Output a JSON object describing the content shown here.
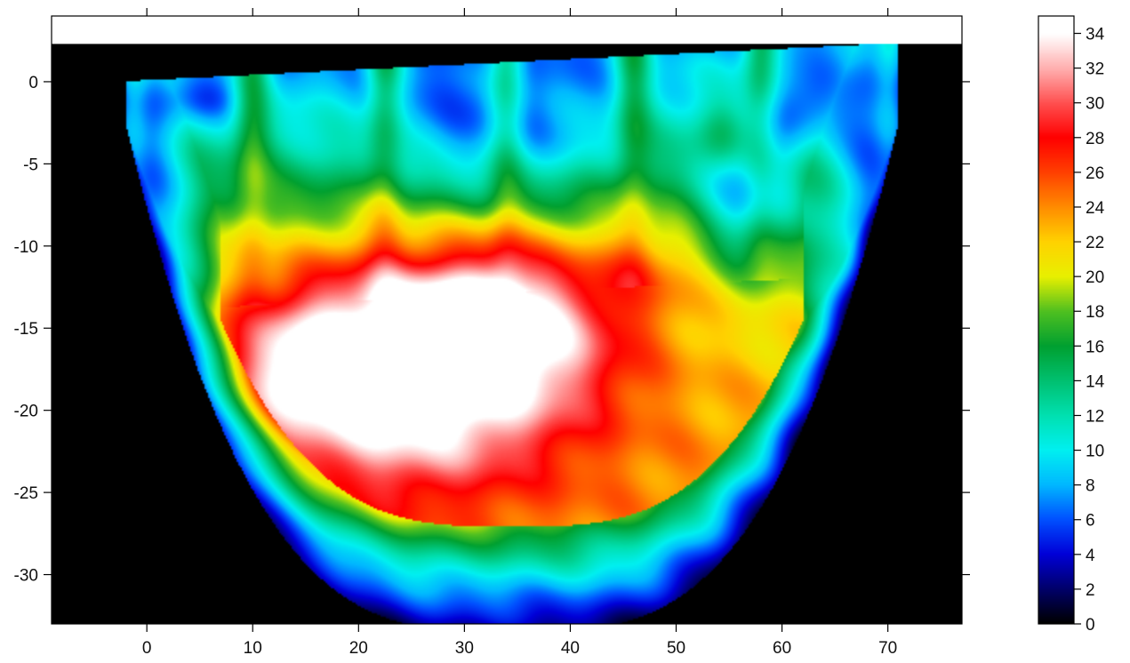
{
  "chart_data": {
    "type": "heatmap",
    "title": "",
    "xlabel": "",
    "ylabel": "",
    "xlim": [
      -9,
      77
    ],
    "ylim": [
      -33,
      4
    ],
    "x_ticks": [
      0,
      10,
      20,
      30,
      40,
      50,
      60,
      70
    ],
    "x_tick_labels": [
      "0",
      "10",
      "20",
      "30",
      "40",
      "50",
      "60",
      "70"
    ],
    "y_ticks": [
      0,
      -5,
      -10,
      -15,
      -20,
      -25,
      -30
    ],
    "y_tick_labels": [
      "0",
      "-5",
      "-10",
      "-15",
      "-20",
      "-25",
      "-30"
    ],
    "surface_top_elevation": 2.3,
    "background_value": 0,
    "colorbar": {
      "min": 0,
      "max": 35,
      "ticks": [
        0,
        2,
        4,
        6,
        8,
        10,
        12,
        14,
        16,
        18,
        20,
        22,
        24,
        26,
        28,
        30,
        32,
        34
      ],
      "tick_labels": [
        "0",
        "2",
        "4",
        "6",
        "8",
        "10",
        "12",
        "14",
        "16",
        "18",
        "20",
        "22",
        "24",
        "26",
        "28",
        "30",
        "32",
        "34"
      ],
      "stops": [
        {
          "value": 0,
          "color": "#000000"
        },
        {
          "value": 2,
          "color": "#00006a"
        },
        {
          "value": 4,
          "color": "#0000d8"
        },
        {
          "value": 6,
          "color": "#0050ff"
        },
        {
          "value": 8,
          "color": "#00b8ff"
        },
        {
          "value": 10,
          "color": "#00f0f0"
        },
        {
          "value": 12,
          "color": "#00e0b0"
        },
        {
          "value": 14,
          "color": "#00c070"
        },
        {
          "value": 16,
          "color": "#00a030"
        },
        {
          "value": 18,
          "color": "#50c020"
        },
        {
          "value": 20,
          "color": "#e8f000"
        },
        {
          "value": 22,
          "color": "#ffd200"
        },
        {
          "value": 24,
          "color": "#ff8c00"
        },
        {
          "value": 26,
          "color": "#ff4000"
        },
        {
          "value": 28,
          "color": "#ff0000"
        },
        {
          "value": 30,
          "color": "#ff5050"
        },
        {
          "value": 32,
          "color": "#ffb0b0"
        },
        {
          "value": 34,
          "color": "#ffffff"
        },
        {
          "value": 35,
          "color": "#ffffff"
        }
      ]
    },
    "hotspots": [
      {
        "x": 24,
        "y": -17,
        "rx": 15,
        "ry": 7,
        "value": 18
      },
      {
        "x": 31,
        "y": -14.5,
        "rx": 7,
        "ry": 3.2,
        "value": 6
      },
      {
        "x": 14,
        "y": -17,
        "rx": 5,
        "ry": 3.5,
        "value": 4
      },
      {
        "x": 48,
        "y": -11.5,
        "rx": 5,
        "ry": 3,
        "value": 3
      },
      {
        "x": 54.5,
        "y": -3,
        "rx": 2.5,
        "ry": 2,
        "value": 4
      },
      {
        "x": 38,
        "y": -14,
        "rx": 10,
        "ry": 6,
        "value": 6
      }
    ],
    "lowspots": [
      {
        "x": 33,
        "y": -3.5,
        "rx": 13,
        "ry": 5,
        "value": -6
      },
      {
        "x": 57,
        "y": -7,
        "rx": 4.5,
        "ry": 4,
        "value": -9
      },
      {
        "x": 62,
        "y": -1.5,
        "rx": 5,
        "ry": 2.5,
        "value": -6
      },
      {
        "x": 6,
        "y": -1,
        "rx": 4,
        "ry": 1.5,
        "value": -4
      }
    ]
  }
}
